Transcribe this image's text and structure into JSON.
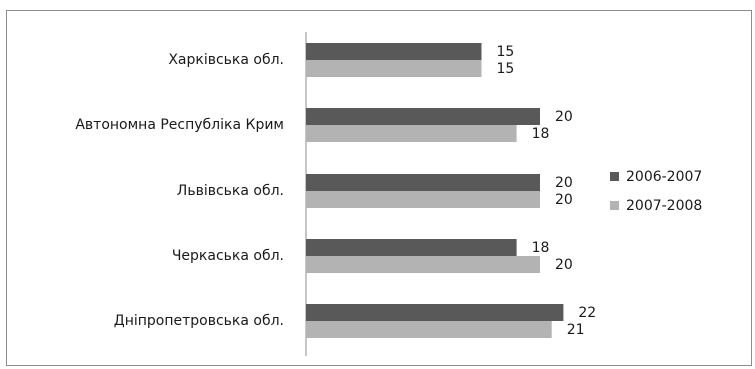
{
  "chart_data": {
    "type": "bar",
    "orientation": "horizontal",
    "categories": [
      "Харківська обл.",
      "Автономна Республіка Крим",
      "Львівська обл.",
      "Черкаська обл.",
      "Дніпропетровська обл."
    ],
    "series": [
      {
        "name": "2006-2007",
        "color": "#595959",
        "values": [
          15,
          20,
          20,
          18,
          22
        ]
      },
      {
        "name": "2007-2008",
        "color": "#b3b3b3",
        "values": [
          15,
          18,
          20,
          20,
          21
        ]
      }
    ],
    "xlim": [
      0,
      25
    ],
    "grid": false,
    "data_labels": true,
    "legend_placement": "right"
  }
}
